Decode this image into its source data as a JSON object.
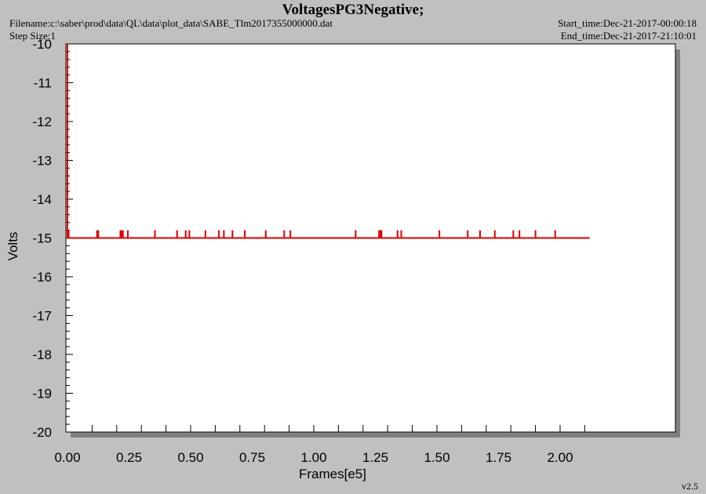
{
  "header": {
    "title": "VoltagesPG3Negative;",
    "filename": "Filename:c:\\saber\\prod\\data\\QL\\data\\plot_data\\SABE_Tlm2017355000000.dat",
    "step_size": "Step Size:1",
    "start_time": "Start_time:Dec-21-2017-00:00:18",
    "end_time": "End_time:Dec-21-2017-21:10:01"
  },
  "footer": {
    "version": "v2.5"
  },
  "colors": {
    "series": "#dd0000",
    "plot_bg": "#ffffff",
    "page_bg": "#c0c0c0",
    "shadow": "#808080"
  },
  "chart_data": {
    "type": "line",
    "title": "VoltagesPG3Negative;",
    "xlabel": "Frames[e5]",
    "ylabel": "Volts",
    "xlim": [
      0,
      2.2
    ],
    "ylim": [
      -20,
      -10
    ],
    "xticks": [
      "0.00",
      "0.25",
      "0.50",
      "0.75",
      "1.00",
      "1.25",
      "1.50",
      "1.75",
      "2.00"
    ],
    "yticks": [
      "-10",
      "-11",
      "-12",
      "-13",
      "-14",
      "-15",
      "-16",
      "-17",
      "-18",
      "-19",
      "-20"
    ],
    "grid": false,
    "series": [
      {
        "baseline": -15.0,
        "x_range": [
          0,
          2.12
        ],
        "initial_value": -10.0,
        "spike_value": -14.8,
        "spikes_x": [
          0.005,
          0.12,
          0.125,
          0.215,
          0.22,
          0.225,
          0.245,
          0.355,
          0.445,
          0.48,
          0.495,
          0.56,
          0.615,
          0.635,
          0.67,
          0.72,
          0.805,
          0.88,
          0.905,
          1.17,
          1.265,
          1.27,
          1.275,
          1.34,
          1.355,
          1.51,
          1.625,
          1.675,
          1.735,
          1.81,
          1.835,
          1.9,
          1.98
        ]
      }
    ]
  }
}
